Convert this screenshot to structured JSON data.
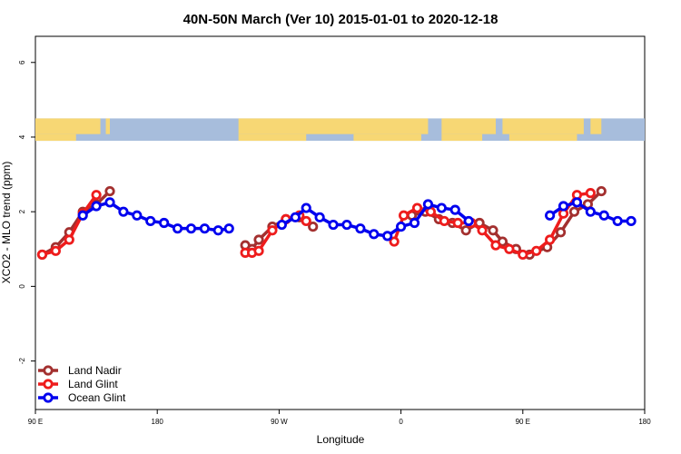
{
  "chart_data": {
    "type": "line",
    "title": "40N-50N March (Ver 10)   2015-01-01 to 2020-12-18",
    "xlabel": "Longitude",
    "ylabel": "XCO2 - MLO trend (ppm)",
    "x_ticks": [
      "90 E",
      "180",
      "90 W",
      "0",
      "90 E",
      "180"
    ],
    "y_ticks": [
      "-2",
      "0",
      "2",
      "4",
      "6"
    ],
    "ylim": [
      -3.3,
      6.7
    ],
    "xlim": [
      0,
      450
    ],
    "grid": false,
    "legend_position": "bottom-left",
    "map_band": {
      "ymin": 3.9,
      "ymax": 4.5,
      "land_color": "#f7d774",
      "ocean_color": "#a7bddc"
    },
    "series": [
      {
        "name": "Land Nadir",
        "color": "#a3302f",
        "x": [
          5,
          15,
          25,
          35,
          45,
          55,
          155,
          160,
          165,
          175,
          185,
          195,
          205,
          215,
          278,
          288,
          298,
          308,
          318,
          328,
          338,
          345,
          355,
          365,
          378,
          388,
          398,
          408,
          418,
          428,
          440
        ],
        "y": [
          0.85,
          1.05,
          1.45,
          2.0,
          2.2,
          2.55,
          1.1,
          1.0,
          1.25,
          1.6,
          1.8,
          1.85,
          1.6,
          null,
          1.9,
          2.0,
          1.8,
          1.7,
          1.5,
          1.7,
          1.5,
          1.2,
          1.0,
          0.85,
          1.05,
          1.45,
          2.0,
          2.2,
          2.55,
          null,
          null
        ]
      },
      {
        "name": "Land Glint",
        "color": "#ee1c1c",
        "x": [
          5,
          15,
          25,
          35,
          45,
          155,
          160,
          165,
          175,
          185,
          195,
          200,
          265,
          272,
          282,
          292,
          302,
          312,
          322,
          330,
          340,
          350,
          360,
          370,
          380,
          390,
          400,
          410
        ],
        "y": [
          0.85,
          0.95,
          1.25,
          1.95,
          2.45,
          0.9,
          0.9,
          0.95,
          1.5,
          1.8,
          1.9,
          1.75,
          1.2,
          1.9,
          2.1,
          2.0,
          1.75,
          1.7,
          1.7,
          1.5,
          1.1,
          1.0,
          0.85,
          0.95,
          1.25,
          1.95,
          2.45,
          2.5
        ]
      },
      {
        "name": "Ocean Glint",
        "color": "#0000ee",
        "x": [
          35,
          45,
          55,
          65,
          75,
          85,
          95,
          105,
          115,
          125,
          135,
          143,
          182,
          192,
          200,
          210,
          220,
          230,
          240,
          250,
          260,
          270,
          280,
          290,
          300,
          310,
          320,
          380,
          390,
          400,
          410,
          420,
          430,
          440
        ],
        "y": [
          1.9,
          2.15,
          2.25,
          2.0,
          1.9,
          1.75,
          1.7,
          1.55,
          1.55,
          1.55,
          1.5,
          1.55,
          1.65,
          1.85,
          2.1,
          1.85,
          1.65,
          1.65,
          1.55,
          1.4,
          1.35,
          1.6,
          1.7,
          2.2,
          2.1,
          2.05,
          1.75,
          1.9,
          2.15,
          2.25,
          2.0,
          1.9,
          1.75,
          1.75
        ]
      }
    ]
  }
}
